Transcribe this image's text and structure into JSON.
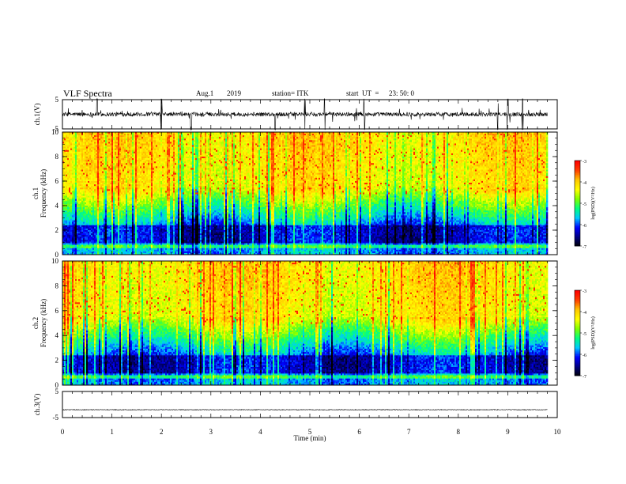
{
  "header": {
    "title": "VLF Spectra",
    "date": "Aug.1",
    "year": "2019",
    "station": "station= ITK",
    "start_label": "start  UT  =",
    "start_time": "23: 50: 0"
  },
  "colors": {
    "trace": "#000000",
    "colormap": [
      "#000000",
      "#000080",
      "#0000ff",
      "#00c8ff",
      "#00ff80",
      "#80ff00",
      "#ffff00",
      "#ffc800",
      "#ff4000",
      "#ff0000",
      "#ffffff"
    ]
  },
  "chart_data": [
    {
      "type": "line",
      "panel": "ch1-waveform",
      "ylabel": "ch.1(V)",
      "ylim": [
        -5,
        5
      ],
      "yticks": [
        "5",
        "-5"
      ],
      "xlim": [
        0,
        10
      ],
      "baseline": 0,
      "note_values": "noisy waveform with spikes near 0.7, 2.0, 4.3, 4.9, 6.1, 8.8, 9.0 min"
    },
    {
      "type": "heatmap",
      "panel": "ch1-spectrogram",
      "ylabel": "ch.1\nFrequency (kHz)",
      "ylabel_line1": "ch.1",
      "ylabel_line2": "Frequency (kHz)",
      "ylim": [
        0,
        10
      ],
      "yticks": [
        "0",
        "2",
        "4",
        "6",
        "8",
        "10"
      ],
      "xlim": [
        0,
        10
      ],
      "colorbar": {
        "label": "log(PSD)(V²/Hz)",
        "ticks": [
          "-3",
          "-4",
          "-5",
          "-6",
          "-7"
        ],
        "range": [
          -7,
          -3
        ]
      }
    },
    {
      "type": "heatmap",
      "panel": "ch2-spectrogram",
      "ylabel_line1": "ch.2",
      "ylabel_line2": "Frequency (kHz)",
      "ylim": [
        0,
        10
      ],
      "yticks": [
        "0",
        "2",
        "4",
        "6",
        "8",
        "10"
      ],
      "xlim": [
        0,
        10
      ],
      "colorbar": {
        "label": "log(PSD)(V²/Hz)",
        "ticks": [
          "-3",
          "-4",
          "-5",
          "-6",
          "-7"
        ],
        "range": [
          -7,
          -3
        ]
      }
    },
    {
      "type": "line",
      "panel": "ch3-waveform",
      "ylabel": "ch.3(V)",
      "ylim": [
        -5,
        5
      ],
      "yticks": [
        "5",
        "-5"
      ],
      "xlim": [
        0,
        10
      ],
      "baseline": -2
    }
  ],
  "xaxis": {
    "label": "Time  (min)",
    "ticks": [
      "0",
      "1",
      "2",
      "3",
      "4",
      "5",
      "6",
      "7",
      "8",
      "9",
      "10"
    ],
    "data_end": 9.8
  }
}
